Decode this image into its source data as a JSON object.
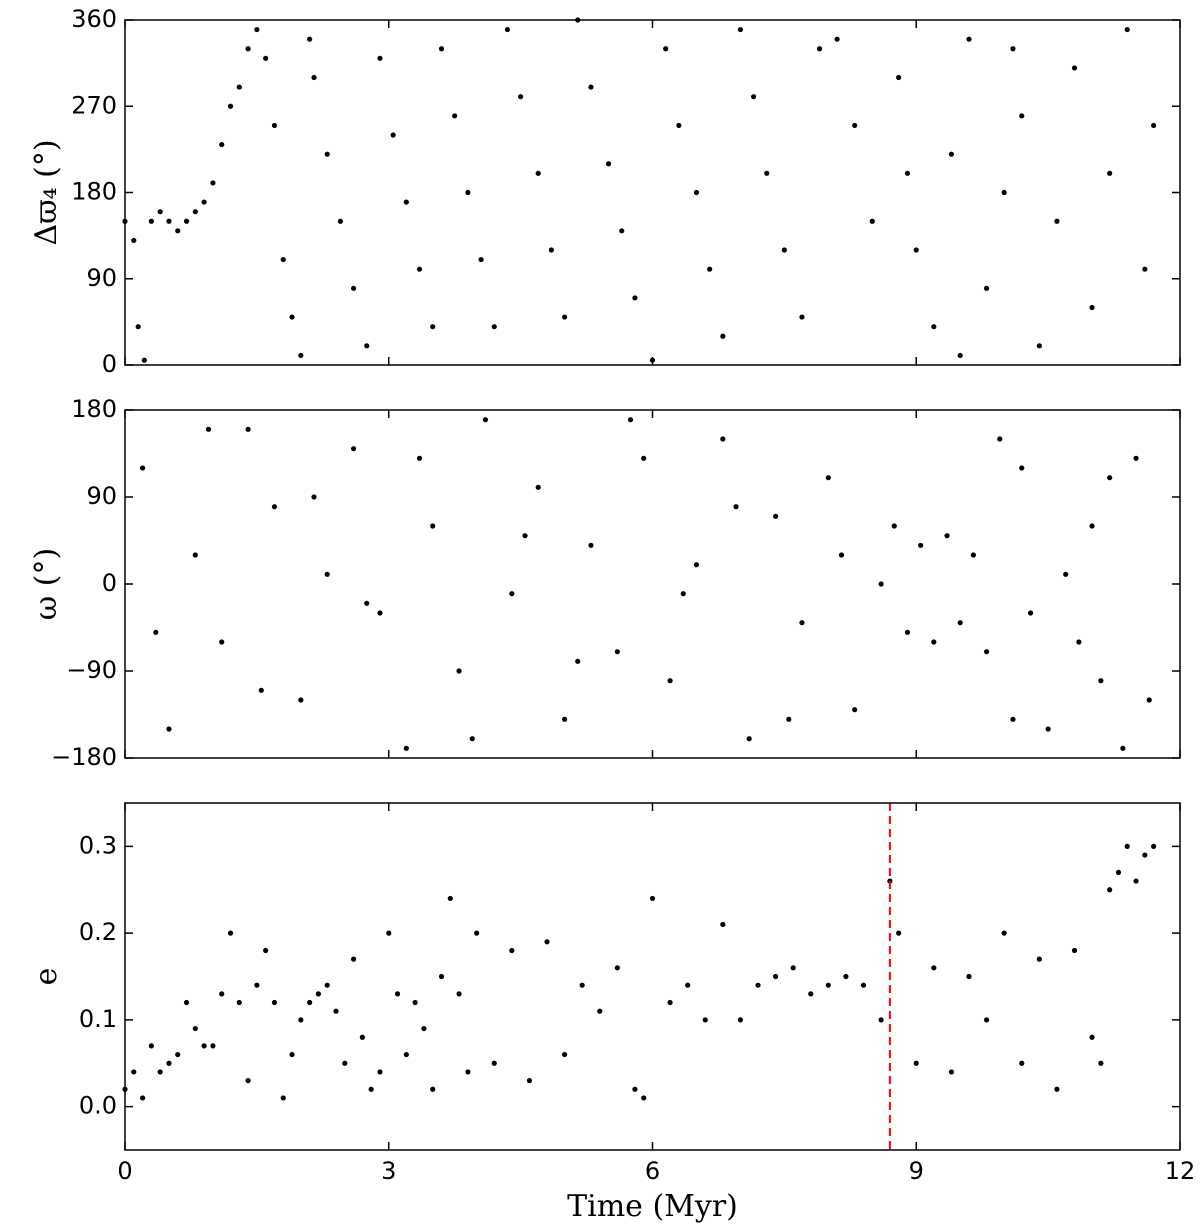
{
  "chart_data": [
    {
      "type": "scatter",
      "ylabel": "Δϖ₄ (°)",
      "color": "#000000",
      "xlim": [
        0,
        12
      ],
      "xticks": [
        0,
        3,
        6,
        9,
        12
      ],
      "ylim": [
        0,
        360
      ],
      "yticks": [
        0,
        90,
        180,
        270,
        360
      ],
      "x": [
        0.0,
        0.1,
        0.15,
        0.22,
        0.3,
        0.4,
        0.5,
        0.6,
        0.7,
        0.8,
        0.9,
        1.0,
        1.1,
        1.2,
        1.3,
        1.4,
        1.5,
        1.6,
        1.7,
        1.8,
        1.9,
        2.0,
        2.1,
        2.15,
        2.3,
        2.45,
        2.6,
        2.75,
        2.9,
        3.05,
        3.2,
        3.35,
        3.5,
        3.6,
        3.75,
        3.9,
        4.05,
        4.2,
        4.35,
        4.5,
        4.7,
        4.85,
        5.0,
        5.15,
        5.3,
        5.5,
        5.65,
        5.8,
        6.0,
        6.15,
        6.3,
        6.5,
        6.65,
        6.8,
        7.0,
        7.15,
        7.3,
        7.5,
        7.7,
        7.9,
        8.1,
        8.3,
        8.5,
        8.8,
        8.9,
        9.0,
        9.2,
        9.4,
        9.5,
        9.6,
        9.8,
        10.0,
        10.1,
        10.2,
        10.4,
        10.6,
        10.8,
        11.0,
        11.2,
        11.4,
        11.6,
        11.7
      ],
      "values": [
        150,
        130,
        40,
        5,
        150,
        160,
        150,
        140,
        150,
        160,
        170,
        190,
        230,
        270,
        290,
        330,
        350,
        320,
        250,
        110,
        50,
        10,
        340,
        300,
        220,
        150,
        80,
        20,
        320,
        240,
        170,
        100,
        40,
        330,
        260,
        180,
        110,
        40,
        350,
        280,
        200,
        120,
        50,
        360,
        290,
        210,
        140,
        70,
        5,
        330,
        250,
        180,
        100,
        30,
        350,
        280,
        200,
        120,
        50,
        330,
        340,
        250,
        150,
        300,
        200,
        120,
        40,
        220,
        10,
        340,
        80,
        180,
        330,
        260,
        20,
        150,
        310,
        60,
        200,
        350,
        100,
        250
      ]
    },
    {
      "type": "scatter",
      "ylabel": "ω (°)",
      "color": "#000000",
      "xlim": [
        0,
        12
      ],
      "xticks": [
        0,
        3,
        6,
        9,
        12
      ],
      "ylim": [
        -180,
        180
      ],
      "yticks": [
        {
          "value": -180,
          "label": "−180"
        },
        {
          "value": -90,
          "label": "−90"
        },
        0,
        90,
        180
      ],
      "x": [
        0.2,
        0.5,
        0.8,
        1.1,
        1.4,
        1.7,
        2.0,
        2.3,
        2.6,
        2.9,
        3.2,
        3.5,
        3.8,
        4.1,
        4.4,
        4.7,
        5.0,
        5.3,
        5.6,
        5.9,
        6.2,
        6.5,
        6.8,
        7.1,
        7.4,
        7.7,
        8.0,
        8.3,
        8.6,
        0.35,
        0.95,
        1.55,
        2.15,
        2.75,
        3.35,
        3.95,
        4.55,
        5.15,
        5.75,
        6.35,
        6.95,
        7.55,
        8.15,
        8.75,
        8.9,
        9.05,
        9.2,
        9.35,
        9.5,
        9.65,
        9.8,
        9.95,
        10.1,
        10.2,
        10.3,
        10.5,
        10.7,
        10.85,
        11.0,
        11.1,
        11.2,
        11.35,
        11.5,
        11.65
      ],
      "values": [
        120,
        -150,
        30,
        -60,
        160,
        80,
        -120,
        10,
        140,
        -30,
        -170,
        60,
        -90,
        170,
        -10,
        100,
        -140,
        40,
        -70,
        130,
        -100,
        20,
        150,
        -160,
        70,
        -40,
        110,
        -130,
        0,
        -50,
        160,
        -110,
        90,
        -20,
        130,
        -160,
        50,
        -80,
        170,
        -10,
        80,
        -140,
        30,
        60,
        -50,
        40,
        -60,
        50,
        -40,
        30,
        -70,
        150,
        -140,
        120,
        -30,
        -150,
        10,
        -60,
        60,
        -100,
        110,
        -170,
        130,
        -120
      ]
    },
    {
      "type": "scatter",
      "ylabel": "e",
      "xlabel": "Time (Myr)",
      "color": "#000000",
      "xlim": [
        0,
        12
      ],
      "xticks": [
        0,
        3,
        6,
        9,
        12
      ],
      "ylim": [
        -0.05,
        0.35
      ],
      "yticks": [
        {
          "value": 0,
          "label": "0.0"
        },
        0.1,
        0.2,
        0.3
      ],
      "vline": {
        "x": 8.7,
        "color": "#ff0000"
      },
      "x": [
        0.0,
        0.1,
        0.2,
        0.3,
        0.4,
        0.5,
        0.6,
        0.7,
        0.8,
        0.9,
        1.0,
        1.1,
        1.2,
        1.3,
        1.4,
        1.5,
        1.6,
        1.7,
        1.8,
        1.9,
        2.0,
        2.1,
        2.2,
        2.3,
        2.4,
        2.5,
        2.6,
        2.7,
        2.8,
        2.9,
        3.0,
        3.1,
        3.2,
        3.3,
        3.4,
        3.5,
        3.6,
        3.7,
        3.8,
        3.9,
        4.0,
        4.2,
        4.4,
        4.6,
        4.8,
        5.0,
        5.2,
        5.4,
        5.6,
        5.8,
        5.9,
        6.0,
        6.2,
        6.4,
        6.6,
        6.8,
        7.0,
        7.2,
        7.4,
        7.6,
        7.8,
        8.0,
        8.2,
        8.4,
        8.6,
        8.7,
        8.8,
        9.0,
        9.2,
        9.4,
        9.6,
        9.8,
        10.0,
        10.2,
        10.4,
        10.6,
        10.8,
        11.0,
        11.1,
        11.2,
        11.3,
        11.4,
        11.5,
        11.6,
        11.7
      ],
      "values": [
        0.02,
        0.04,
        0.01,
        0.07,
        0.04,
        0.05,
        0.06,
        0.12,
        0.09,
        0.07,
        0.07,
        0.13,
        0.2,
        0.12,
        0.03,
        0.14,
        0.18,
        0.12,
        0.01,
        0.06,
        0.1,
        0.12,
        0.13,
        0.14,
        0.11,
        0.05,
        0.17,
        0.08,
        0.02,
        0.04,
        0.2,
        0.13,
        0.06,
        0.12,
        0.09,
        0.02,
        0.15,
        0.24,
        0.13,
        0.04,
        0.2,
        0.05,
        0.18,
        0.03,
        0.19,
        0.06,
        0.14,
        0.11,
        0.16,
        0.02,
        0.01,
        0.24,
        0.12,
        0.14,
        0.1,
        0.21,
        0.1,
        0.14,
        0.15,
        0.16,
        0.13,
        0.14,
        0.15,
        0.14,
        0.1,
        0.26,
        0.2,
        0.05,
        0.16,
        0.04,
        0.15,
        0.1,
        0.2,
        0.05,
        0.17,
        0.02,
        0.18,
        0.08,
        0.05,
        0.25,
        0.27,
        0.3,
        0.26,
        0.29,
        0.3
      ]
    }
  ]
}
